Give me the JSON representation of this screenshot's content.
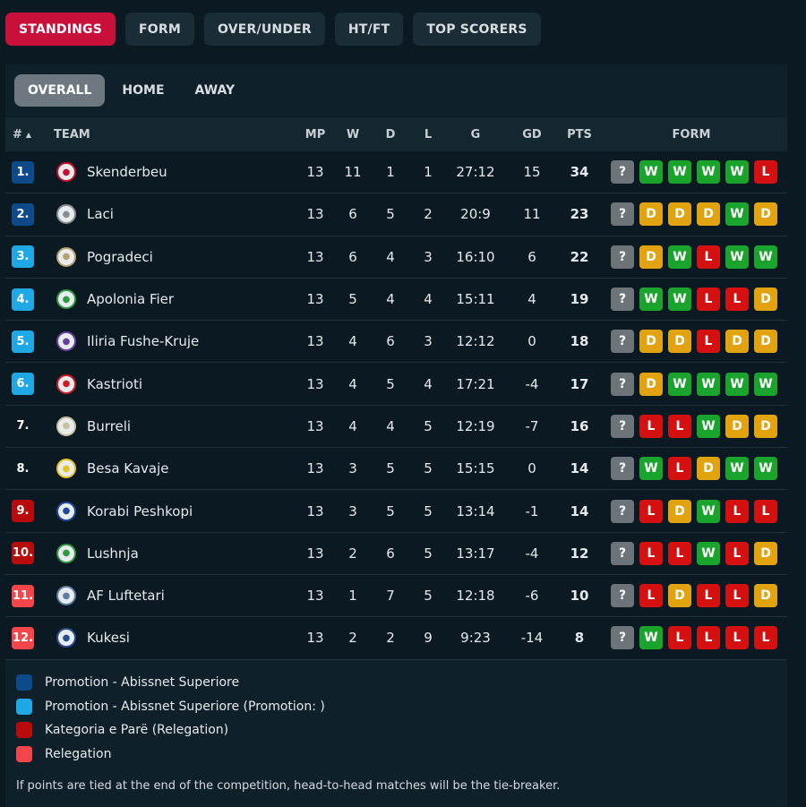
{
  "top_tabs": [
    "STANDINGS",
    "FORM",
    "OVER/UNDER",
    "HT/FT",
    "TOP SCORERS"
  ],
  "sub_tabs": [
    "OVERALL",
    "HOME",
    "AWAY"
  ],
  "headers": {
    "rank": "#",
    "sort_arrow": "▲",
    "team": "TEAM",
    "mp": "MP",
    "w": "W",
    "d": "D",
    "l": "L",
    "g": "G",
    "gd": "GD",
    "pts": "PTS",
    "form": "FORM"
  },
  "colors": {
    "accent": "#c8103a",
    "promotion": "#0d4a8a",
    "promotion_playoff": "#1fa8e6",
    "relegation_playoff": "#b80b0b",
    "relegation": "#f2464a",
    "neutral": "#0b1a22",
    "W": "#1aa32d",
    "D": "#e2a311",
    "L": "#d51010"
  },
  "rows": [
    {
      "rank": "1.",
      "zone": "promotion",
      "team": "Skenderbeu",
      "logo_icon": "skenderbeu-crest-icon",
      "logo_color": "#c8102e",
      "mp": "13",
      "w": "11",
      "d": "1",
      "l": "1",
      "g": "27:12",
      "gd": "15",
      "pts": "34",
      "form": [
        "?",
        "W",
        "W",
        "W",
        "W",
        "L"
      ]
    },
    {
      "rank": "2.",
      "zone": "promotion",
      "team": "Laci",
      "logo_icon": "laci-crest-icon",
      "logo_color": "#8a8f93",
      "mp": "13",
      "w": "6",
      "d": "5",
      "l": "2",
      "g": "20:9",
      "gd": "11",
      "pts": "23",
      "form": [
        "?",
        "D",
        "D",
        "D",
        "W",
        "D"
      ]
    },
    {
      "rank": "3.",
      "zone": "promotion_playoff",
      "team": "Pogradeci",
      "logo_icon": "pogradeci-crest-icon",
      "logo_color": "#b8a06a",
      "mp": "13",
      "w": "6",
      "d": "4",
      "l": "3",
      "g": "16:10",
      "gd": "6",
      "pts": "22",
      "form": [
        "?",
        "D",
        "W",
        "L",
        "W",
        "W"
      ]
    },
    {
      "rank": "4.",
      "zone": "promotion_playoff",
      "team": "Apolonia Fier",
      "logo_icon": "apolonia-crest-icon",
      "logo_color": "#2e9a3d",
      "mp": "13",
      "w": "5",
      "d": "4",
      "l": "4",
      "g": "15:11",
      "gd": "4",
      "pts": "19",
      "form": [
        "?",
        "W",
        "W",
        "L",
        "L",
        "D"
      ]
    },
    {
      "rank": "5.",
      "zone": "promotion_playoff",
      "team": "Iliria Fushe-Kruje",
      "logo_icon": "iliria-crest-icon",
      "logo_color": "#6a3fa0",
      "mp": "13",
      "w": "4",
      "d": "6",
      "l": "3",
      "g": "12:12",
      "gd": "0",
      "pts": "18",
      "form": [
        "?",
        "D",
        "D",
        "L",
        "D",
        "D"
      ]
    },
    {
      "rank": "6.",
      "zone": "promotion_playoff",
      "team": "Kastrioti",
      "logo_icon": "kastrioti-crest-icon",
      "logo_color": "#d01c22",
      "mp": "13",
      "w": "4",
      "d": "5",
      "l": "4",
      "g": "17:21",
      "gd": "-4",
      "pts": "17",
      "form": [
        "?",
        "D",
        "W",
        "W",
        "W",
        "W"
      ]
    },
    {
      "rank": "7.",
      "zone": "neutral",
      "team": "Burreli",
      "logo_icon": "burreli-crest-icon",
      "logo_color": "#c9c2a0",
      "mp": "13",
      "w": "4",
      "d": "4",
      "l": "5",
      "g": "12:19",
      "gd": "-7",
      "pts": "16",
      "form": [
        "?",
        "L",
        "L",
        "W",
        "D",
        "D"
      ]
    },
    {
      "rank": "8.",
      "zone": "neutral",
      "team": "Besa Kavaje",
      "logo_icon": "besa-crest-icon",
      "logo_color": "#e6c41a",
      "mp": "13",
      "w": "3",
      "d": "5",
      "l": "5",
      "g": "15:15",
      "gd": "0",
      "pts": "14",
      "form": [
        "?",
        "W",
        "L",
        "D",
        "W",
        "W"
      ]
    },
    {
      "rank": "9.",
      "zone": "relegation_playoff",
      "team": "Korabi Peshkopi",
      "logo_icon": "korabi-crest-icon",
      "logo_color": "#1f4a9a",
      "mp": "13",
      "w": "3",
      "d": "5",
      "l": "5",
      "g": "13:14",
      "gd": "-1",
      "pts": "14",
      "form": [
        "?",
        "L",
        "D",
        "W",
        "L",
        "L"
      ]
    },
    {
      "rank": "10.",
      "zone": "relegation_playoff",
      "team": "Lushnja",
      "logo_icon": "lushnja-crest-icon",
      "logo_color": "#2e9a3d",
      "mp": "13",
      "w": "2",
      "d": "6",
      "l": "5",
      "g": "13:17",
      "gd": "-4",
      "pts": "12",
      "form": [
        "?",
        "L",
        "L",
        "W",
        "L",
        "D"
      ]
    },
    {
      "rank": "11.",
      "zone": "relegation",
      "team": "AF Luftetari",
      "logo_icon": "luftetari-crest-icon",
      "logo_color": "#5a7da0",
      "mp": "13",
      "w": "1",
      "d": "7",
      "l": "5",
      "g": "12:18",
      "gd": "-6",
      "pts": "10",
      "form": [
        "?",
        "L",
        "D",
        "L",
        "L",
        "D"
      ]
    },
    {
      "rank": "12.",
      "zone": "relegation",
      "team": "Kukesi",
      "logo_icon": "kukesi-crest-icon",
      "logo_color": "#2a4e8a",
      "mp": "13",
      "w": "2",
      "d": "2",
      "l": "9",
      "g": "9:23",
      "gd": "-14",
      "pts": "8",
      "form": [
        "?",
        "W",
        "L",
        "L",
        "L",
        "L"
      ]
    }
  ],
  "legend": [
    {
      "zone": "promotion",
      "label": "Promotion - Abissnet Superiore"
    },
    {
      "zone": "promotion_playoff",
      "label": "Promotion - Abissnet Superiore (Promotion: )"
    },
    {
      "zone": "relegation_playoff",
      "label": "Kategoria e Parë (Relegation)"
    },
    {
      "zone": "relegation",
      "label": "Relegation"
    }
  ],
  "note": "If points are tied at the end of the competition, head-to-head matches will be the tie-breaker."
}
